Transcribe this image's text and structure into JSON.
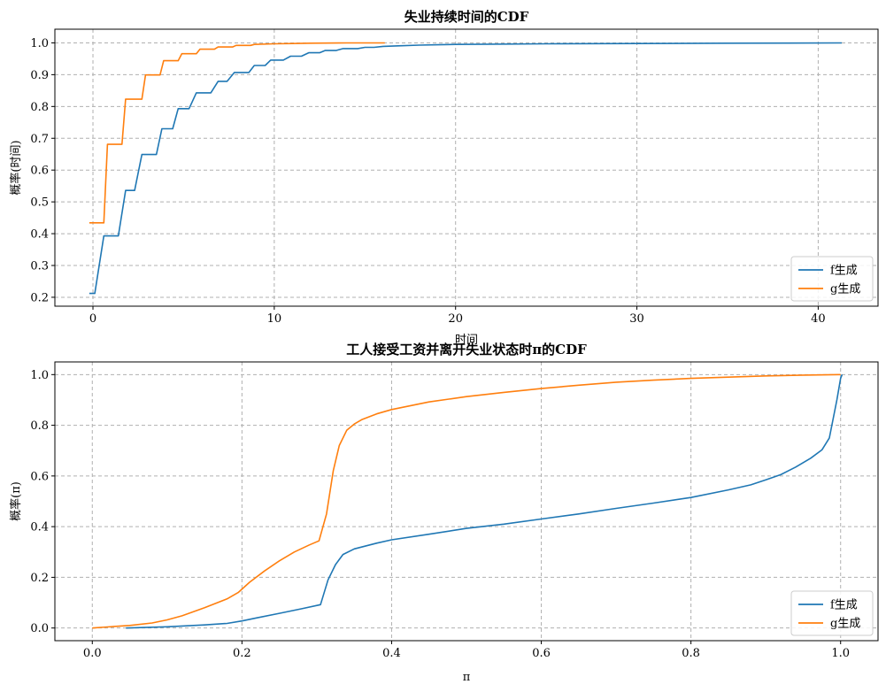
{
  "colors": {
    "f": "#1f77b4",
    "g": "#ff7f0e"
  },
  "chart_data": [
    {
      "type": "line",
      "title": "失业持续时间的CDF",
      "xlabel": "时间",
      "ylabel": "概率(时间)",
      "xlim": [
        -2.1,
        43.3
      ],
      "ylim": [
        0.172,
        1.043
      ],
      "xticks": [
        0,
        10,
        20,
        30,
        40
      ],
      "yticks": [
        0.2,
        0.3,
        0.4,
        0.5,
        0.6,
        0.7,
        0.8,
        0.9,
        1.0
      ],
      "xtick_labels": [
        "0",
        "10",
        "20",
        "30",
        "40"
      ],
      "ytick_labels": [
        "0.2",
        "0.3",
        "0.4",
        "0.5",
        "0.6",
        "0.7",
        "0.8",
        "0.9",
        "1.0"
      ],
      "grid": true,
      "legend_position": "lower-right",
      "series": [
        {
          "name": "f生成",
          "color_key": "f",
          "x": [
            -0.2,
            0.1,
            0.6,
            1.4,
            1.8,
            2.3,
            2.7,
            3.5,
            3.8,
            4.4,
            4.7,
            5.3,
            5.7,
            6.5,
            6.9,
            7.4,
            7.8,
            8.6,
            8.9,
            9.5,
            9.8,
            10.5,
            10.9,
            11.5,
            11.9,
            12.5,
            12.8,
            13.4,
            13.8,
            14.6,
            15.0,
            15.5,
            16.0,
            17.0,
            18.0,
            19.0,
            20.0,
            22.0,
            25.0,
            30.0,
            35.0,
            41.3
          ],
          "y": [
            0.212,
            0.212,
            0.393,
            0.393,
            0.536,
            0.536,
            0.649,
            0.649,
            0.73,
            0.73,
            0.793,
            0.793,
            0.843,
            0.843,
            0.879,
            0.879,
            0.907,
            0.907,
            0.929,
            0.929,
            0.946,
            0.946,
            0.958,
            0.958,
            0.969,
            0.969,
            0.976,
            0.976,
            0.982,
            0.982,
            0.986,
            0.986,
            0.989,
            0.991,
            0.993,
            0.994,
            0.995,
            0.996,
            0.997,
            0.998,
            0.999,
            1.0
          ]
        },
        {
          "name": "g生成",
          "color_key": "g",
          "x": [
            -0.2,
            0.6,
            0.8,
            1.6,
            1.8,
            2.7,
            2.9,
            3.7,
            3.9,
            4.7,
            4.9,
            5.7,
            5.9,
            6.7,
            6.9,
            7.7,
            7.9,
            8.7,
            8.9,
            10.0,
            11.0,
            12.0,
            14.0,
            16.1
          ],
          "y": [
            0.434,
            0.434,
            0.681,
            0.681,
            0.823,
            0.823,
            0.899,
            0.899,
            0.944,
            0.944,
            0.966,
            0.966,
            0.98,
            0.98,
            0.987,
            0.987,
            0.992,
            0.992,
            0.995,
            0.997,
            0.998,
            0.999,
            1.0,
            1.0
          ]
        }
      ]
    },
    {
      "type": "line",
      "title": "工人接受工资并离开失业状态时π的CDF",
      "xlabel": "π",
      "ylabel": "概率(π)",
      "xlim": [
        -0.05,
        1.05
      ],
      "ylim": [
        -0.05,
        1.05
      ],
      "xticks": [
        0,
        0.2,
        0.4,
        0.6,
        0.8,
        1.0
      ],
      "yticks": [
        0,
        0.2,
        0.4,
        0.6,
        0.8,
        1.0
      ],
      "xtick_labels": [
        "0.0",
        "0.2",
        "0.4",
        "0.6",
        "0.8",
        "1.0"
      ],
      "ytick_labels": [
        "0.0",
        "0.2",
        "0.4",
        "0.6",
        "0.8",
        "1.0"
      ],
      "grid": true,
      "legend_position": "lower-right",
      "series": [
        {
          "name": "f生成",
          "color_key": "f",
          "x": [
            0.045,
            0.1,
            0.15,
            0.18,
            0.2,
            0.22,
            0.25,
            0.28,
            0.305,
            0.315,
            0.325,
            0.335,
            0.35,
            0.38,
            0.4,
            0.45,
            0.5,
            0.55,
            0.6,
            0.65,
            0.7,
            0.75,
            0.8,
            0.85,
            0.88,
            0.9,
            0.92,
            0.94,
            0.96,
            0.975,
            0.985,
            0.995,
            1.0,
            1.002
          ],
          "y": [
            0.0,
            0.005,
            0.012,
            0.018,
            0.028,
            0.04,
            0.058,
            0.076,
            0.092,
            0.19,
            0.25,
            0.29,
            0.312,
            0.335,
            0.348,
            0.37,
            0.393,
            0.41,
            0.43,
            0.45,
            0.472,
            0.493,
            0.515,
            0.545,
            0.565,
            0.585,
            0.605,
            0.635,
            0.67,
            0.703,
            0.75,
            0.9,
            0.985,
            1.0
          ]
        },
        {
          "name": "g生成",
          "color_key": "g",
          "x": [
            0.0,
            0.02,
            0.05,
            0.08,
            0.1,
            0.12,
            0.15,
            0.18,
            0.195,
            0.21,
            0.23,
            0.25,
            0.27,
            0.29,
            0.303,
            0.313,
            0.322,
            0.33,
            0.34,
            0.35,
            0.36,
            0.38,
            0.4,
            0.45,
            0.5,
            0.55,
            0.6,
            0.65,
            0.7,
            0.75,
            0.8,
            0.85,
            0.9,
            0.95,
            1.0
          ],
          "y": [
            0.0,
            0.004,
            0.01,
            0.02,
            0.032,
            0.048,
            0.08,
            0.115,
            0.14,
            0.18,
            0.225,
            0.265,
            0.3,
            0.328,
            0.344,
            0.45,
            0.62,
            0.72,
            0.78,
            0.805,
            0.822,
            0.845,
            0.862,
            0.892,
            0.913,
            0.93,
            0.945,
            0.958,
            0.97,
            0.978,
            0.985,
            0.99,
            0.995,
            0.998,
            1.0
          ]
        }
      ]
    }
  ]
}
